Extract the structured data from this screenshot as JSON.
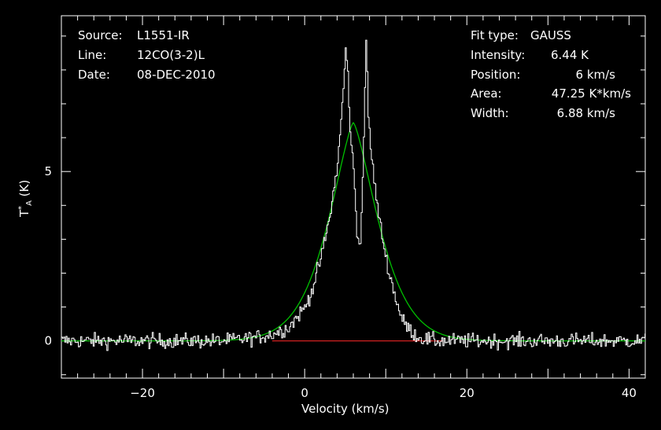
{
  "info_left": {
    "source_label": "Source:",
    "source_value": "L1551-IR",
    "line_label": "Line:",
    "line_value": "12CO(3-2)L",
    "date_label": "Date:",
    "date_value": "08-DEC-2010"
  },
  "info_right": {
    "fit_type_label": "Fit type:",
    "fit_type_value": "GAUSS",
    "intensity_label": "Intensity:",
    "intensity_value": "6.44 K",
    "position_label": "Position:",
    "position_value": "6 km/s",
    "area_label": "Area:",
    "area_value": "47.25 K*km/s",
    "width_label": "Width:",
    "width_value": "6.88 km/s"
  },
  "colors": {
    "background": "#000000",
    "axes": "#ffffff",
    "spectrum": "#ffffff",
    "fit": "#00c000",
    "baseline": "#d02020"
  },
  "chart_data": {
    "type": "line",
    "xlabel": "Velocity (km/s)",
    "ylabel": "T_A^* (K)",
    "xlim": [
      -30,
      42
    ],
    "ylim": [
      -1.1,
      9.6
    ],
    "xticks": [
      -20,
      0,
      20,
      40
    ],
    "yticks": [
      0,
      5
    ],
    "grid": false,
    "series": [
      {
        "kind": "spectrum",
        "x": [
          -30,
          -25,
          -20,
          -15,
          -10,
          -6,
          -4,
          -2,
          -1,
          0,
          1,
          2,
          3,
          4,
          4.6,
          5,
          5.3,
          5.6,
          6,
          6.4,
          6.6,
          6.9,
          7.2,
          7.5,
          7.8,
          8.2,
          9,
          10,
          11,
          12,
          13,
          14,
          16,
          20,
          25,
          30,
          35,
          42
        ],
        "y": [
          0,
          0,
          0,
          0,
          0,
          0.1,
          0.2,
          0.4,
          0.7,
          1.0,
          1.6,
          2.5,
          3.6,
          5.2,
          7.0,
          8.6,
          7.8,
          6.0,
          5.0,
          3.2,
          2.9,
          3.2,
          5.6,
          9.0,
          6.6,
          5.4,
          3.8,
          2.4,
          1.4,
          0.6,
          0.3,
          0.1,
          0,
          0,
          0,
          0,
          0,
          0
        ]
      },
      {
        "kind": "gaussian_fit",
        "amplitude": 6.44,
        "center": 6,
        "fwhm": 6.88,
        "profile_exponent": 1.4
      },
      {
        "kind": "baseline",
        "x": [
          -4,
          17
        ],
        "y": [
          0,
          0
        ]
      }
    ]
  }
}
